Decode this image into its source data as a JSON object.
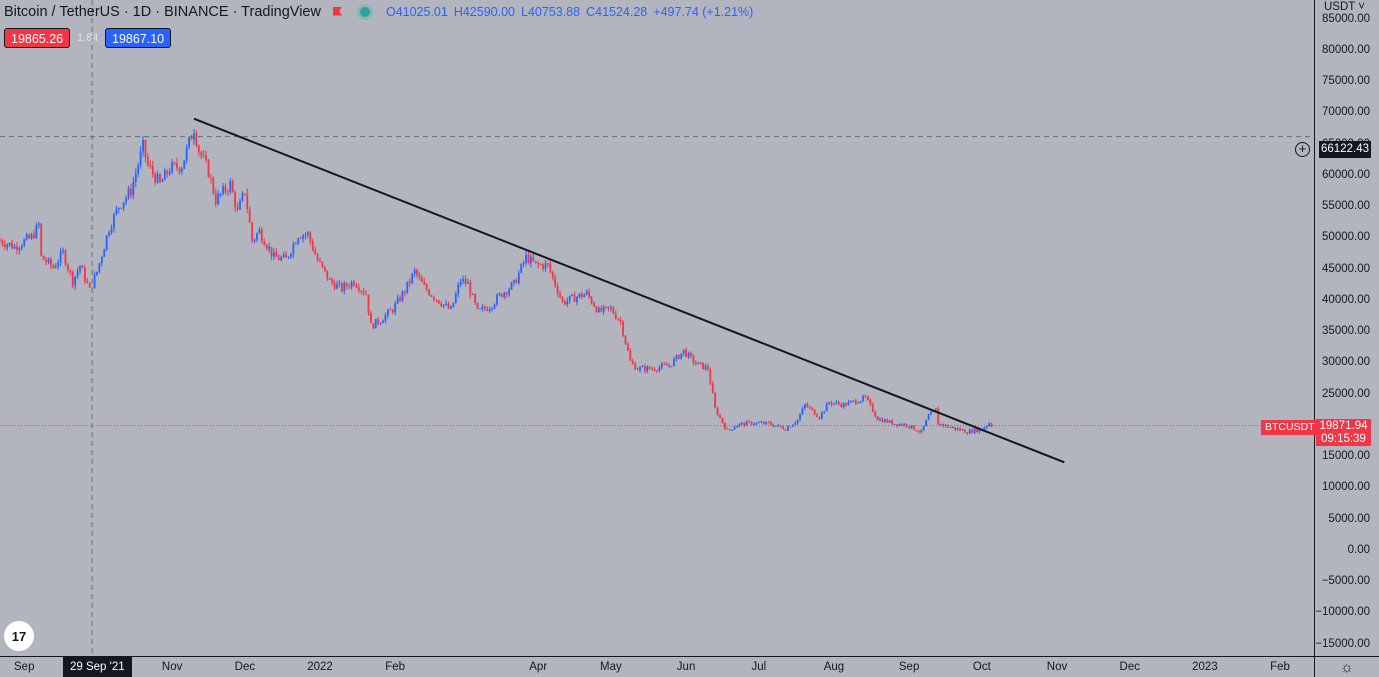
{
  "header": {
    "symbol": "Bitcoin / TetherUS · 1D · BINANCE · TradingView",
    "open": "O41025.01",
    "high": "H42590.00",
    "low": "L40753.88",
    "close": "C41524.28",
    "change": "+497.74 (+1.21%)"
  },
  "trade": {
    "sell": "19865.26",
    "spread": "1.84",
    "buy": "19867.10"
  },
  "logo": "17",
  "price_axis": {
    "currency": "USDT ˅",
    "last_price": "19871.94",
    "countdown": "09:15:39",
    "symbol_tag": "BTCUSDT",
    "hline_value": "66122.43"
  },
  "crosshair_date": "29 Sep '21",
  "chart_data": {
    "type": "candlestick",
    "ylim": [
      -17000,
      88000
    ],
    "yticks": [
      {
        "v": 85000,
        "label": "85000.00"
      },
      {
        "v": 80000,
        "label": "80000.00"
      },
      {
        "v": 75000,
        "label": "75000.00"
      },
      {
        "v": 70000,
        "label": "70000.00"
      },
      {
        "v": 65000,
        "label": "65000.00"
      },
      {
        "v": 60000,
        "label": "60000.00"
      },
      {
        "v": 55000,
        "label": "55000.00"
      },
      {
        "v": 50000,
        "label": "50000.00"
      },
      {
        "v": 45000,
        "label": "45000.00"
      },
      {
        "v": 40000,
        "label": "40000.00"
      },
      {
        "v": 35000,
        "label": "35000.00"
      },
      {
        "v": 30000,
        "label": "30000.00"
      },
      {
        "v": 25000,
        "label": "25000.00"
      },
      {
        "v": 20000,
        "label": "20000.00"
      },
      {
        "v": 15000,
        "label": "15000.00"
      },
      {
        "v": 10000,
        "label": "10000.00"
      },
      {
        "v": 5000,
        "label": "5000.00"
      },
      {
        "v": 0,
        "label": "0.00"
      },
      {
        "v": -5000,
        "label": "−5000.00"
      },
      {
        "v": -10000,
        "label": "−10000.00"
      },
      {
        "v": -15000,
        "label": "−15000.00"
      }
    ],
    "x_start": "2021-08-22",
    "x_end": "2023-02-15",
    "xticks": [
      {
        "d": "2021-09-01",
        "label": "Sep"
      },
      {
        "d": "2021-11-01",
        "label": "Nov"
      },
      {
        "d": "2021-12-01",
        "label": "Dec"
      },
      {
        "d": "2022-01-01",
        "label": "2022"
      },
      {
        "d": "2022-02-01",
        "label": "Feb"
      },
      {
        "d": "2022-04-01",
        "label": "Apr"
      },
      {
        "d": "2022-05-01",
        "label": "May"
      },
      {
        "d": "2022-06-01",
        "label": "Jun"
      },
      {
        "d": "2022-07-01",
        "label": "Jul"
      },
      {
        "d": "2022-08-01",
        "label": "Aug"
      },
      {
        "d": "2022-09-01",
        "label": "Sep"
      },
      {
        "d": "2022-10-01",
        "label": "Oct"
      },
      {
        "d": "2022-11-01",
        "label": "Nov"
      },
      {
        "d": "2022-12-01",
        "label": "Dec"
      },
      {
        "d": "2023-01-01",
        "label": "2023"
      },
      {
        "d": "2023-02-01",
        "label": "Feb"
      }
    ],
    "close_path": [
      [
        "2021-08-22",
        49500
      ],
      [
        "2021-08-28",
        48500
      ],
      [
        "2021-09-04",
        50000
      ],
      [
        "2021-09-07",
        52000
      ],
      [
        "2021-09-08",
        46800
      ],
      [
        "2021-09-13",
        45200
      ],
      [
        "2021-09-17",
        47500
      ],
      [
        "2021-09-21",
        43000
      ],
      [
        "2021-09-24",
        45500
      ],
      [
        "2021-09-28",
        41500
      ],
      [
        "2021-10-01",
        44500
      ],
      [
        "2021-10-06",
        51500
      ],
      [
        "2021-10-10",
        55000
      ],
      [
        "2021-10-15",
        57500
      ],
      [
        "2021-10-20",
        64500
      ],
      [
        "2021-10-22",
        61500
      ],
      [
        "2021-10-27",
        58500
      ],
      [
        "2021-10-31",
        61000
      ],
      [
        "2021-11-05",
        61500
      ],
      [
        "2021-11-10",
        67500
      ],
      [
        "2021-11-12",
        64000
      ],
      [
        "2021-11-16",
        60500
      ],
      [
        "2021-11-19",
        56000
      ],
      [
        "2021-11-25",
        58500
      ],
      [
        "2021-11-28",
        54000
      ],
      [
        "2021-12-01",
        57500
      ],
      [
        "2021-12-04",
        49500
      ],
      [
        "2021-12-07",
        51000
      ],
      [
        "2021-12-13",
        46800
      ],
      [
        "2021-12-18",
        46500
      ],
      [
        "2021-12-23",
        50500
      ],
      [
        "2021-12-27",
        50500
      ],
      [
        "2021-12-31",
        46300
      ],
      [
        "2022-01-05",
        43000
      ],
      [
        "2022-01-10",
        41800
      ],
      [
        "2022-01-15",
        43000
      ],
      [
        "2022-01-20",
        41000
      ],
      [
        "2022-01-22",
        35800
      ],
      [
        "2022-01-26",
        36800
      ],
      [
        "2022-01-31",
        38500
      ],
      [
        "2022-02-05",
        41500
      ],
      [
        "2022-02-09",
        44500
      ],
      [
        "2022-02-13",
        42000
      ],
      [
        "2022-02-17",
        40500
      ],
      [
        "2022-02-24",
        38300
      ],
      [
        "2022-02-28",
        43200
      ],
      [
        "2022-03-03",
        42500
      ],
      [
        "2022-03-07",
        38000
      ],
      [
        "2022-03-12",
        39000
      ],
      [
        "2022-03-17",
        41000
      ],
      [
        "2022-03-22",
        42500
      ],
      [
        "2022-03-27",
        46800
      ],
      [
        "2022-03-31",
        45600
      ],
      [
        "2022-04-05",
        45500
      ],
      [
        "2022-04-11",
        39600
      ],
      [
        "2022-04-17",
        40500
      ],
      [
        "2022-04-21",
        41000
      ],
      [
        "2022-04-26",
        38100
      ],
      [
        "2022-05-01",
        38500
      ],
      [
        "2022-05-05",
        36500
      ],
      [
        "2022-05-09",
        30100
      ],
      [
        "2022-05-12",
        29000
      ],
      [
        "2022-05-18",
        29000
      ],
      [
        "2022-05-25",
        29500
      ],
      [
        "2022-05-31",
        31800
      ],
      [
        "2022-06-05",
        29800
      ],
      [
        "2022-06-10",
        29000
      ],
      [
        "2022-06-13",
        22500
      ],
      [
        "2022-06-18",
        19000
      ],
      [
        "2022-06-22",
        20000
      ],
      [
        "2022-06-28",
        20300
      ],
      [
        "2022-07-05",
        20200
      ],
      [
        "2022-07-12",
        19400
      ],
      [
        "2022-07-17",
        20800
      ],
      [
        "2022-07-20",
        23200
      ],
      [
        "2022-07-26",
        21300
      ],
      [
        "2022-07-30",
        23600
      ],
      [
        "2022-08-05",
        23200
      ],
      [
        "2022-08-14",
        24300
      ],
      [
        "2022-08-19",
        21000
      ],
      [
        "2022-08-26",
        20200
      ],
      [
        "2022-08-31",
        20000
      ],
      [
        "2022-09-06",
        18800
      ],
      [
        "2022-09-09",
        21400
      ],
      [
        "2022-09-12",
        22400
      ],
      [
        "2022-09-13",
        20200
      ],
      [
        "2022-09-19",
        19500
      ],
      [
        "2022-09-25",
        18900
      ],
      [
        "2022-10-01",
        19300
      ],
      [
        "2022-10-04",
        20300
      ],
      [
        "2022-10-05",
        19900
      ]
    ],
    "trendline": [
      [
        "2021-11-10",
        69000
      ],
      [
        "2022-11-04",
        14000
      ]
    ],
    "hline": 66122.43,
    "last_price": 19871.94,
    "crosshair_x": "2021-09-29"
  }
}
